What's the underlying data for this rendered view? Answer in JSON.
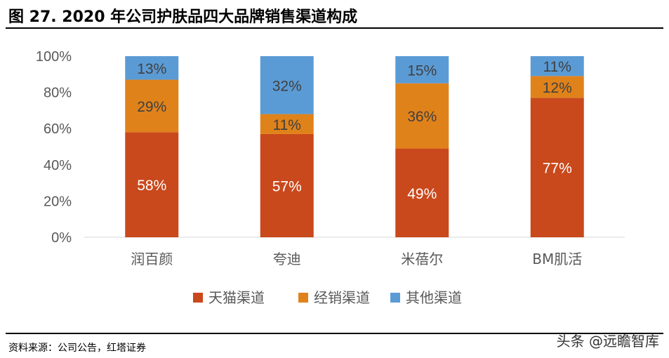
{
  "header": {
    "title": "图 27. 2020 年公司护肤品四大品牌销售渠道构成"
  },
  "footer": {
    "source": "资料来源：公司公告，红塔证券",
    "watermark": "头条 @远瞻智库"
  },
  "colors": {
    "series": [
      "#C9491C",
      "#E0821A",
      "#5B9BD5"
    ],
    "label_light": "#ffffff",
    "label_dark": "#404040",
    "axis": "#d9d9d9"
  },
  "chart_data": {
    "type": "bar",
    "stacked": true,
    "title": "",
    "xlabel": "",
    "ylabel": "",
    "categories": [
      "润百颜",
      "夸迪",
      "米蓓尔",
      "BM肌活"
    ],
    "series": [
      {
        "name": "天猫渠道",
        "values": [
          58,
          57,
          49,
          77
        ],
        "labels": [
          "58%",
          "57%",
          "49%",
          "77%"
        ]
      },
      {
        "name": "经销渠道",
        "values": [
          29,
          11,
          36,
          12
        ],
        "labels": [
          "29%",
          "11%",
          "36%",
          "12%"
        ]
      },
      {
        "name": "其他渠道",
        "values": [
          13,
          32,
          15,
          11
        ],
        "labels": [
          "13%",
          "32%",
          "15%",
          "11%"
        ]
      }
    ],
    "ylim": [
      0,
      100
    ],
    "yticks": [
      "0%",
      "20%",
      "40%",
      "60%",
      "80%",
      "100%"
    ],
    "grid": false,
    "legend_position": "bottom"
  }
}
